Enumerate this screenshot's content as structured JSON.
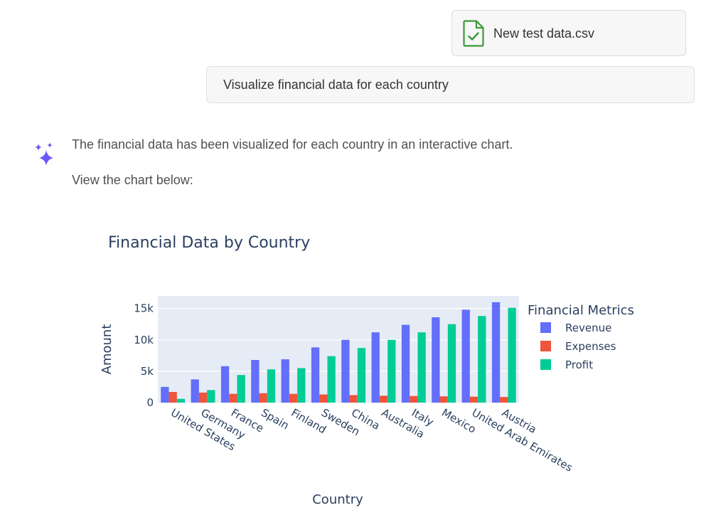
{
  "attachment": {
    "file_name": "New test data.csv",
    "icon": "file-check-icon",
    "icon_color": "#3a9a3a"
  },
  "user_message": {
    "text": "Visualize financial data for each country"
  },
  "assistant": {
    "icon": "sparkle-icon",
    "icon_color": "#6a5af9",
    "line1": "The financial data has been visualized for each country in an interactive chart.",
    "line2": "View the chart below:"
  },
  "chart_data": {
    "type": "bar",
    "title": "Financial Data by Country",
    "xlabel": "Country",
    "ylabel": "Amount",
    "ylim": [
      0,
      17000
    ],
    "yticks": [
      0,
      5000,
      10000,
      15000
    ],
    "ytick_labels": [
      "0",
      "5k",
      "10k",
      "15k"
    ],
    "grid": true,
    "legend_title": "Financial Metrics",
    "legend_position": "right",
    "categories": [
      "United States",
      "Germany",
      "France",
      "Spain",
      "Finland",
      "Sweden",
      "China",
      "Australia",
      "Italy",
      "Mexico",
      "United Arab Emirates",
      "Austria"
    ],
    "series": [
      {
        "name": "Revenue",
        "color": "#636efa",
        "values": [
          2500,
          3700,
          5800,
          6800,
          6900,
          8800,
          10000,
          11200,
          12400,
          13600,
          14800,
          16000
        ]
      },
      {
        "name": "Expenses",
        "color": "#ef553b",
        "values": [
          1700,
          1600,
          1400,
          1500,
          1400,
          1300,
          1200,
          1100,
          1050,
          1000,
          950,
          900
        ]
      },
      {
        "name": "Profit",
        "color": "#00cc96",
        "values": [
          600,
          2000,
          4400,
          5300,
          5500,
          7400,
          8700,
          10000,
          11200,
          12500,
          13800,
          15100
        ]
      }
    ]
  }
}
